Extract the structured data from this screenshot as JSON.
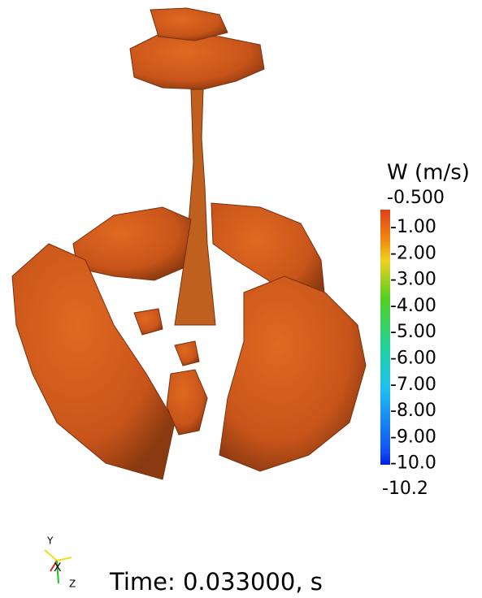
{
  "colorbar": {
    "title": "W (m/s)",
    "max_label": "-0.500",
    "tick_labels": [
      "-1.00",
      "-2.00",
      "-3.00",
      "-4.00",
      "-5.00",
      "-6.00",
      "-7.00",
      "-8.00",
      "-9.00",
      "-10.0"
    ],
    "min_label": "-10.2"
  },
  "time_label": "Time: 0.033000, s",
  "axes": {
    "y": "Y",
    "x": "X",
    "z": "Z"
  }
}
